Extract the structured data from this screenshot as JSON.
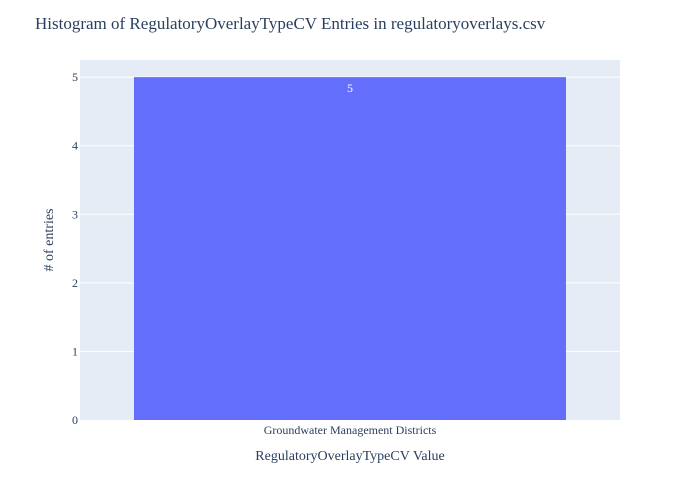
{
  "chart_data": {
    "type": "bar",
    "title": "Histogram of RegulatoryOverlayTypeCV Entries in regulatoryoverlays.csv",
    "xlabel": "RegulatoryOverlayTypeCV Value",
    "ylabel": "# of entries",
    "categories": [
      "Groundwater Management Districts"
    ],
    "values": [
      5
    ],
    "data_labels": [
      "5"
    ],
    "ylim": [
      0,
      5.25
    ],
    "yticks": [
      "0",
      "1",
      "2",
      "3",
      "4",
      "5"
    ],
    "grid": true,
    "legend": "none",
    "colors": {
      "bar": "#636efa",
      "plot_background": "#e5ecf6",
      "gridline": "#ffffff",
      "text": "#2a3f5f"
    }
  }
}
